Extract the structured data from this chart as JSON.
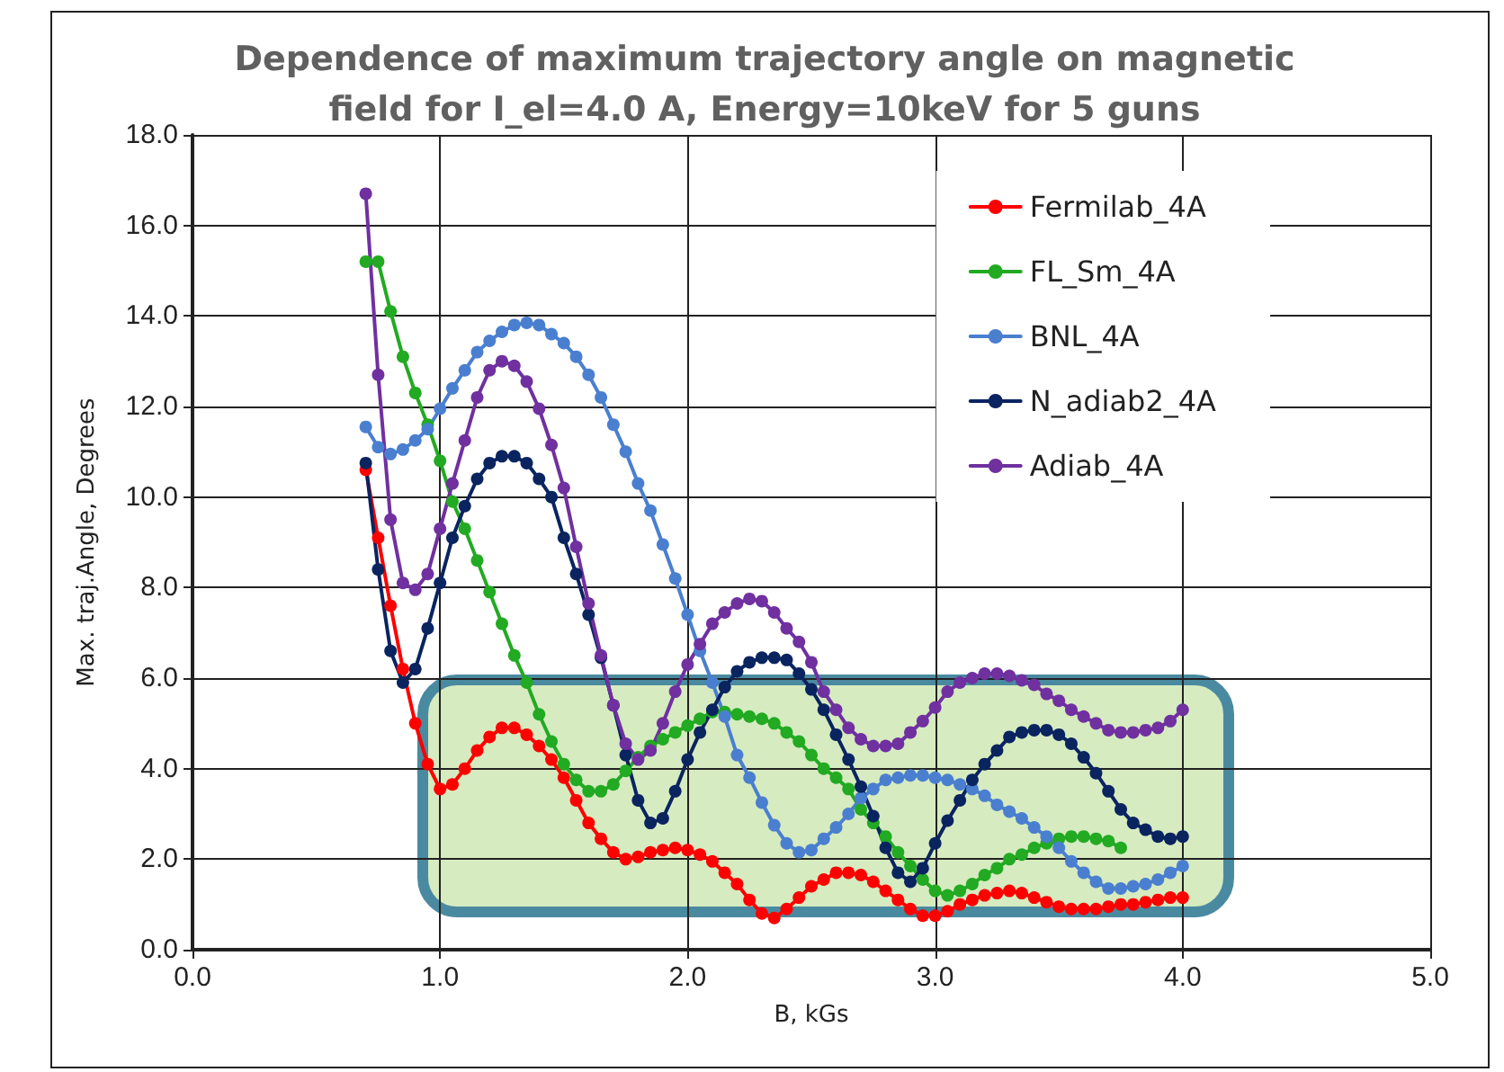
{
  "chart_data": {
    "type": "line",
    "title": "Dependence of maximum trajectory angle on magnetic\nfield for I_el=4.0 A, Energy=10keV for 5 guns",
    "xlabel": "B, kGs",
    "ylabel": "Max. traj.Angle, Degrees",
    "xlim": [
      0,
      5
    ],
    "xticks": [
      {
        "value": 0,
        "label": "0.0"
      },
      {
        "value": 1,
        "label": "1.0"
      },
      {
        "value": 2,
        "label": "2.0"
      },
      {
        "value": 3,
        "label": "3.0"
      },
      {
        "value": 4,
        "label": "4.0"
      },
      {
        "value": 5,
        "label": "5.0"
      }
    ],
    "ylim": [
      0,
      18
    ],
    "yticks": [
      {
        "value": 0,
        "label": "0.0"
      },
      {
        "value": 2,
        "label": "2.0"
      },
      {
        "value": 4,
        "label": "4.0"
      },
      {
        "value": 6,
        "label": "6.0"
      },
      {
        "value": 8,
        "label": "8.0"
      },
      {
        "value": 10,
        "label": "10.0"
      },
      {
        "value": 12,
        "label": "12.0"
      },
      {
        "value": 14,
        "label": "14.0"
      },
      {
        "value": 16,
        "label": "16.0"
      },
      {
        "value": 18,
        "label": "18.0"
      }
    ],
    "grid": true,
    "legend": "top right",
    "marker": "circle",
    "line_style": "solid",
    "x": [
      0.7,
      0.75,
      0.8,
      0.85,
      0.9,
      0.95,
      1.0,
      1.05,
      1.1,
      1.15,
      1.2,
      1.25,
      1.3,
      1.35,
      1.4,
      1.45,
      1.5,
      1.55,
      1.6,
      1.65,
      1.7,
      1.75,
      1.8,
      1.85,
      1.9,
      1.95,
      2.0,
      2.05,
      2.1,
      2.15,
      2.2,
      2.25,
      2.3,
      2.35,
      2.4,
      2.45,
      2.5,
      2.55,
      2.6,
      2.65,
      2.7,
      2.75,
      2.8,
      2.85,
      2.9,
      2.95,
      3.0,
      3.05,
      3.1,
      3.15,
      3.2,
      3.25,
      3.3,
      3.35,
      3.4,
      3.45,
      3.5,
      3.55,
      3.6,
      3.65,
      3.7,
      3.75,
      3.8,
      3.85,
      3.9,
      3.95,
      4.0
    ],
    "series": [
      {
        "name": "Fermilab_4A",
        "color": "#ff0000",
        "values": [
          10.6,
          9.1,
          7.6,
          6.2,
          5.0,
          4.1,
          3.55,
          3.65,
          4.0,
          4.4,
          4.7,
          4.9,
          4.9,
          4.75,
          4.5,
          4.2,
          3.8,
          3.3,
          2.8,
          2.45,
          2.15,
          2.0,
          2.05,
          2.15,
          2.2,
          2.25,
          2.2,
          2.1,
          1.95,
          1.7,
          1.45,
          1.1,
          0.8,
          0.7,
          0.9,
          1.15,
          1.4,
          1.55,
          1.7,
          1.7,
          1.65,
          1.5,
          1.3,
          1.1,
          0.9,
          0.75,
          0.75,
          0.85,
          1.0,
          1.1,
          1.2,
          1.25,
          1.3,
          1.25,
          1.15,
          1.05,
          0.95,
          0.9,
          0.9,
          0.9,
          0.95,
          1.0,
          1.0,
          1.05,
          1.1,
          1.15,
          1.15
        ]
      },
      {
        "name": "FL_Sm_4A",
        "color": "#22aa22",
        "values": [
          15.2,
          15.2,
          14.1,
          13.1,
          12.3,
          11.6,
          10.8,
          9.9,
          9.3,
          8.6,
          7.9,
          7.2,
          6.5,
          5.9,
          5.2,
          4.6,
          4.1,
          3.75,
          3.5,
          3.5,
          3.65,
          3.95,
          4.25,
          4.5,
          4.65,
          4.8,
          4.95,
          5.1,
          5.25,
          5.25,
          5.2,
          5.15,
          5.1,
          5.0,
          4.8,
          4.6,
          4.3,
          4.0,
          3.8,
          3.55,
          3.1,
          2.8,
          2.5,
          2.15,
          1.85,
          1.55,
          1.3,
          1.2,
          1.3,
          1.45,
          1.65,
          1.8,
          2.0,
          2.1,
          2.25,
          2.35,
          2.45,
          2.5,
          2.5,
          2.45,
          2.4,
          2.25,
          null,
          null,
          null,
          null,
          null
        ]
      },
      {
        "name": "BNL_4A",
        "color": "#4a7fd0",
        "values": [
          11.55,
          11.1,
          10.95,
          11.05,
          11.25,
          11.5,
          11.95,
          12.4,
          12.8,
          13.2,
          13.45,
          13.65,
          13.8,
          13.85,
          13.8,
          13.6,
          13.4,
          13.1,
          12.7,
          12.2,
          11.6,
          11.0,
          10.3,
          9.7,
          8.95,
          8.2,
          7.4,
          6.6,
          5.9,
          5.15,
          4.3,
          3.8,
          3.25,
          2.75,
          2.35,
          2.15,
          2.2,
          2.45,
          2.7,
          3.0,
          3.35,
          3.55,
          3.75,
          3.8,
          3.85,
          3.85,
          3.8,
          3.75,
          3.65,
          3.55,
          3.4,
          3.2,
          3.05,
          2.9,
          2.7,
          2.5,
          2.25,
          1.95,
          1.7,
          1.5,
          1.35,
          1.35,
          1.4,
          1.45,
          1.55,
          1.7,
          1.85
        ]
      },
      {
        "name": "N_adiab2_4A",
        "color": "#0a2460",
        "values": [
          10.75,
          8.4,
          6.6,
          5.9,
          6.2,
          7.1,
          8.1,
          9.1,
          9.8,
          10.4,
          10.75,
          10.9,
          10.9,
          10.75,
          10.4,
          10.0,
          9.1,
          8.3,
          7.4,
          6.45,
          5.4,
          4.3,
          3.3,
          2.8,
          2.9,
          3.5,
          4.2,
          4.8,
          5.3,
          5.8,
          6.15,
          6.35,
          6.45,
          6.45,
          6.4,
          6.1,
          5.75,
          5.3,
          4.75,
          4.2,
          3.6,
          2.95,
          2.25,
          1.7,
          1.5,
          1.8,
          2.35,
          2.85,
          3.3,
          3.75,
          4.1,
          4.4,
          4.7,
          4.8,
          4.85,
          4.85,
          4.75,
          4.55,
          4.25,
          3.9,
          3.5,
          3.1,
          2.8,
          2.65,
          2.5,
          2.45,
          2.5
        ]
      },
      {
        "name": "Adiab_4A",
        "color": "#7030a0",
        "values": [
          16.7,
          12.7,
          9.5,
          8.1,
          7.95,
          8.3,
          9.3,
          10.3,
          11.25,
          12.2,
          12.8,
          13.0,
          12.9,
          12.55,
          11.95,
          11.15,
          10.2,
          8.9,
          7.65,
          6.5,
          5.4,
          4.55,
          4.2,
          4.4,
          5.0,
          5.7,
          6.3,
          6.75,
          7.2,
          7.45,
          7.65,
          7.75,
          7.7,
          7.45,
          7.1,
          6.8,
          6.35,
          5.7,
          5.3,
          4.9,
          4.65,
          4.5,
          4.5,
          4.55,
          4.8,
          5.05,
          5.35,
          5.7,
          5.9,
          6.0,
          6.1,
          6.1,
          6.05,
          5.95,
          5.85,
          5.65,
          5.5,
          5.3,
          5.15,
          5.0,
          4.85,
          4.8,
          4.8,
          4.85,
          4.9,
          5.05,
          5.3
        ]
      }
    ]
  }
}
